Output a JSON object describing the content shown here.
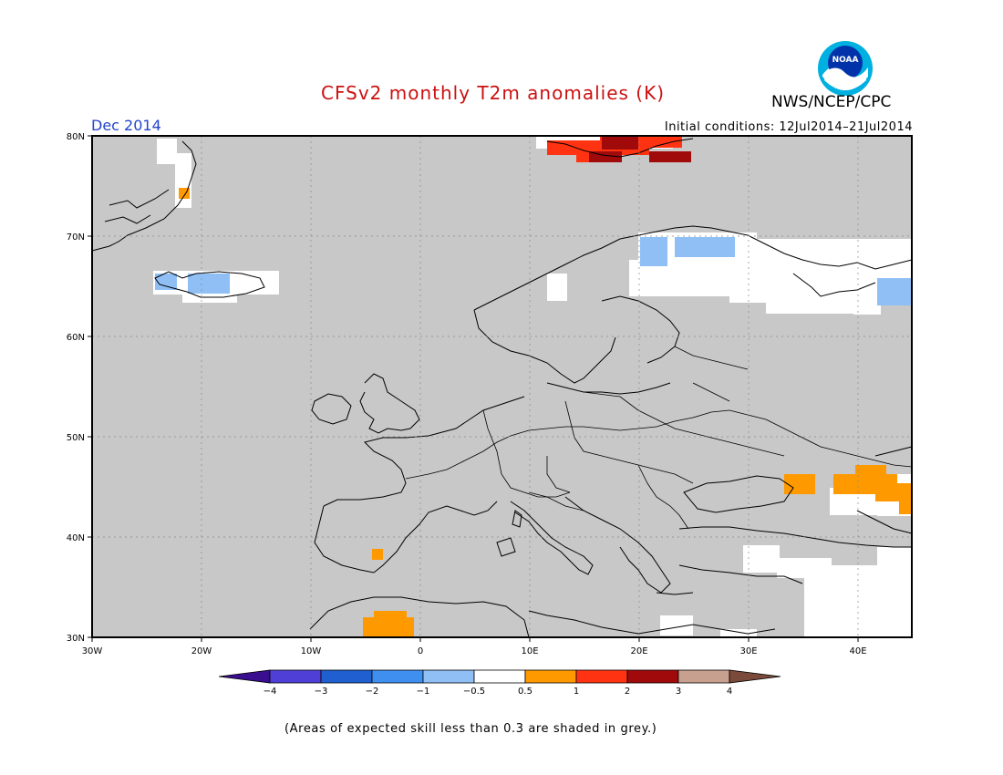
{
  "title": "CFSv2 monthly T2m anomalies (K)",
  "org": "NWS/NCEP/CPC",
  "logo_text": "NOAA",
  "month_label": "Dec 2014",
  "initial_conditions": "Initial conditions: 12Jul2014–21Jul2014",
  "footnote": "(Areas of expected skill less than 0.3 are shaded in grey.)",
  "map": {
    "lat_labels": [
      "80N",
      "70N",
      "60N",
      "50N",
      "40N",
      "30N"
    ],
    "lon_labels": [
      "30W",
      "20W",
      "10W",
      "0",
      "10E",
      "20E",
      "30E",
      "40E"
    ],
    "low_skill_color": "#c8c8c8",
    "land_outline_color": "#000000"
  },
  "colorbar": {
    "labels": [
      "−4",
      "−3",
      "−2",
      "−1",
      "−0.5",
      "0.5",
      "1",
      "2",
      "3",
      "4"
    ],
    "colors": [
      "#3a0f8f",
      "#4f3fd6",
      "#1f5fcf",
      "#3f8ff0",
      "#8fbff5",
      "#ffffff",
      "#ff9900",
      "#ff3311",
      "#a00a0a",
      "#c8a090",
      "#7a4a3a"
    ]
  }
}
